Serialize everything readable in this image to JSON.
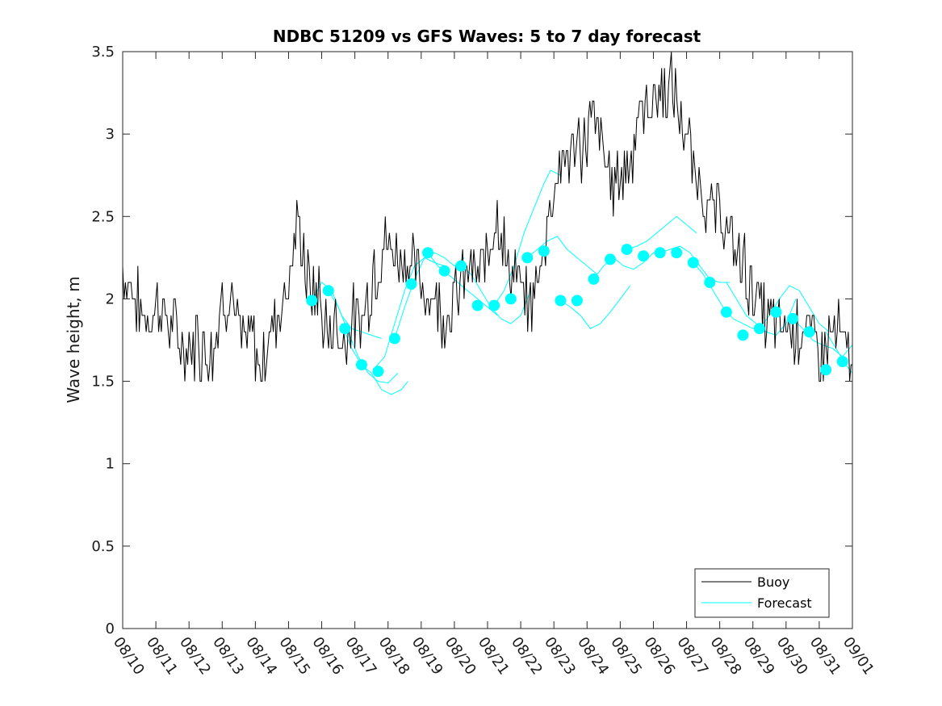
{
  "chart_data": {
    "type": "line",
    "title": "NDBC 51209 vs GFS Waves: 5 to 7 day forecast",
    "xlabel": "",
    "ylabel": "Wave height, m",
    "ylim": [
      0,
      3.5
    ],
    "yticks": [
      0,
      0.5,
      1,
      1.5,
      2,
      2.5,
      3,
      3.5
    ],
    "ytick_labels": [
      "0",
      "0.5",
      "1",
      "1.5",
      "2",
      "2.5",
      "3",
      "3.5"
    ],
    "xlim_days": [
      0,
      22
    ],
    "xtick_labels": [
      "08/10",
      "08/11",
      "08/12",
      "08/13",
      "08/14",
      "08/15",
      "08/16",
      "08/17",
      "08/18",
      "08/19",
      "08/20",
      "08/21",
      "08/22",
      "08/23",
      "08/24",
      "08/25",
      "08/26",
      "08/27",
      "08/28",
      "08/29",
      "08/30",
      "08/31",
      "09/01"
    ],
    "grid": false,
    "legend": {
      "position": "bottom-right",
      "entries": [
        "Buoy",
        "Forecast"
      ]
    },
    "colors": {
      "buoy": "#000000",
      "forecast": "#00ffff",
      "axis": "#262626"
    },
    "series": [
      {
        "name": "Buoy",
        "x_units": "days since 08/10 00:00",
        "x": [
          0,
          0.5,
          0.8,
          1,
          1.3,
          1.6,
          1.9,
          2.2,
          2.5,
          2.8,
          3,
          3.3,
          3.6,
          3.9,
          4.1,
          4.3,
          4.6,
          4.8,
          5,
          5.3,
          5.5,
          5.7,
          5.9,
          6.1,
          6.4,
          6.6,
          6.9,
          7.1,
          7.3,
          7.6,
          7.9,
          8.2,
          8.5,
          8.8,
          9,
          9.2,
          9.5,
          9.7,
          10,
          10.2,
          10.5,
          10.7,
          11,
          11.3,
          11.6,
          11.9,
          12.2,
          12.5,
          12.8,
          13,
          13.3,
          13.6,
          13.9,
          14.2,
          14.5,
          14.7,
          15,
          15.3,
          15.6,
          15.9,
          16.2,
          16.5,
          16.8,
          17,
          17.2,
          17.4,
          17.6,
          17.8,
          18,
          18.3,
          18.6,
          18.9,
          19.2,
          19.5,
          19.8,
          20,
          20.2,
          20.5,
          20.8,
          21.1,
          21.4,
          21.7,
          22
        ],
        "y": [
          2.2,
          1.95,
          1.85,
          2.0,
          1.9,
          1.8,
          1.7,
          1.75,
          1.7,
          1.75,
          2.0,
          2.0,
          1.7,
          1.8,
          1.55,
          1.7,
          1.9,
          2.0,
          2.1,
          2.5,
          2.2,
          2.0,
          2.05,
          1.8,
          1.85,
          1.75,
          1.9,
          1.8,
          1.95,
          2.2,
          2.3,
          2.3,
          2.25,
          2.2,
          2.1,
          2.05,
          2.0,
          1.9,
          2.0,
          2.1,
          2.2,
          2.1,
          2.3,
          2.55,
          2.2,
          2.1,
          1.95,
          2.1,
          2.45,
          2.7,
          2.85,
          2.9,
          2.95,
          3.1,
          2.9,
          2.7,
          2.75,
          2.9,
          3.1,
          3.2,
          3.25,
          3.3,
          3.1,
          2.95,
          2.8,
          2.7,
          2.6,
          2.5,
          2.55,
          2.35,
          2.25,
          2.1,
          1.95,
          1.85,
          1.8,
          1.85,
          1.8,
          1.85,
          1.75,
          1.7,
          1.8,
          1.75,
          1.6
        ]
      },
      {
        "name": "Forecast",
        "points_x": [
          5.7,
          6.2,
          6.7,
          7.2,
          7.7,
          8.2,
          8.7,
          9.2,
          9.7,
          10.2,
          10.7,
          11.2,
          11.7,
          12.2,
          12.7,
          13.2,
          13.7,
          14.2,
          14.7,
          15.2,
          15.7,
          16.2,
          16.7,
          17.2,
          17.7,
          18.2,
          18.7,
          19.2,
          19.7,
          20.2,
          20.7,
          21.2,
          21.7
        ],
        "points_y": [
          1.99,
          2.05,
          1.82,
          1.6,
          1.56,
          1.76,
          2.09,
          2.28,
          2.17,
          2.2,
          1.96,
          1.96,
          2.0,
          2.25,
          2.29,
          1.99,
          1.99,
          2.12,
          2.24,
          2.3,
          2.26,
          2.28,
          2.28,
          2.22,
          2.1,
          1.92,
          1.78,
          1.82,
          1.92,
          1.88,
          1.8,
          1.57,
          1.62
        ],
        "traces": [
          {
            "x": [
              5.7,
              6.0,
              6.3,
              6.6,
              6.9,
              7.2,
              7.5,
              7.8
            ],
            "y": [
              1.99,
              2.1,
              2.05,
              1.9,
              1.82,
              1.8,
              1.78,
              1.76
            ]
          },
          {
            "x": [
              6.2,
              6.5,
              6.8,
              7.1,
              7.4,
              7.7,
              8.0,
              8.3
            ],
            "y": [
              2.05,
              1.95,
              1.8,
              1.65,
              1.55,
              1.5,
              1.49,
              1.55
            ]
          },
          {
            "x": [
              6.6,
              6.9,
              7.2,
              7.5,
              7.8,
              8.1,
              8.4,
              8.6
            ],
            "y": [
              1.85,
              1.7,
              1.6,
              1.55,
              1.45,
              1.42,
              1.45,
              1.5
            ]
          },
          {
            "x": [
              7.6,
              7.9,
              8.2,
              8.5,
              8.8,
              9.1,
              9.4,
              9.7
            ],
            "y": [
              1.58,
              1.65,
              1.85,
              2.05,
              2.2,
              2.25,
              2.22,
              2.2
            ]
          },
          {
            "x": [
              8.2,
              8.5,
              8.8,
              9.1,
              9.4,
              9.7,
              10.0,
              10.3
            ],
            "y": [
              1.76,
              1.95,
              2.12,
              2.25,
              2.28,
              2.25,
              2.2,
              2.25
            ]
          },
          {
            "x": [
              9.2,
              9.5,
              9.8,
              10.1,
              10.4,
              10.7,
              11.0,
              11.3
            ],
            "y": [
              2.28,
              2.2,
              2.15,
              2.1,
              2.05,
              2.0,
              1.95,
              1.9
            ]
          },
          {
            "x": [
              10.2,
              10.5,
              10.8,
              11.1,
              11.4,
              11.7,
              12.0,
              12.3
            ],
            "y": [
              2.2,
              2.15,
              2.05,
              1.95,
              1.88,
              1.85,
              1.9,
              2.05
            ]
          },
          {
            "x": [
              11.2,
              11.5,
              11.8,
              12.1,
              12.4,
              12.7,
              12.9,
              13.2
            ],
            "y": [
              1.96,
              2.05,
              2.2,
              2.4,
              2.55,
              2.7,
              2.78,
              2.75
            ]
          },
          {
            "x": [
              12.2,
              12.5,
              12.8,
              13.1,
              13.4,
              13.7,
              14.0,
              14.3
            ],
            "y": [
              2.25,
              2.3,
              2.35,
              2.38,
              2.3,
              2.25,
              2.2,
              2.15
            ]
          },
          {
            "x": [
              13.2,
              13.5,
              13.8,
              14.1,
              14.4,
              14.7,
              15.0,
              15.3
            ],
            "y": [
              1.99,
              1.95,
              1.9,
              1.82,
              1.85,
              1.92,
              2.0,
              2.08
            ]
          },
          {
            "x": [
              14.2,
              14.5,
              14.8,
              15.1,
              15.4,
              15.7,
              16.0,
              16.3
            ],
            "y": [
              2.12,
              2.2,
              2.25,
              2.2,
              2.18,
              2.22,
              2.28,
              2.3
            ]
          },
          {
            "x": [
              15.2,
              15.5,
              15.8,
              16.1,
              16.4,
              16.7,
              17.0,
              17.3
            ],
            "y": [
              2.3,
              2.32,
              2.35,
              2.4,
              2.45,
              2.5,
              2.45,
              2.4
            ]
          },
          {
            "x": [
              16.2,
              16.5,
              16.8,
              17.1,
              17.4,
              17.7,
              18.0,
              18.3
            ],
            "y": [
              2.28,
              2.3,
              2.32,
              2.28,
              2.2,
              2.12,
              2.1,
              2.1
            ]
          },
          {
            "x": [
              17.2,
              17.5,
              17.8,
              18.1,
              18.4,
              18.7,
              19.0,
              19.3
            ],
            "y": [
              2.22,
              2.15,
              2.05,
              1.95,
              1.88,
              1.85,
              1.82,
              1.85
            ]
          },
          {
            "x": [
              18.2,
              18.5,
              18.8,
              19.1,
              19.4,
              19.7,
              20.0,
              20.3
            ],
            "y": [
              2.1,
              2.0,
              1.9,
              1.85,
              1.8,
              1.78,
              1.85,
              2.0
            ]
          },
          {
            "x": [
              19.2,
              19.5,
              19.8,
              20.1,
              20.4,
              20.7,
              21.0,
              21.3
            ],
            "y": [
              1.82,
              1.9,
              2.0,
              2.08,
              2.05,
              1.95,
              1.85,
              1.8
            ]
          },
          {
            "x": [
              20.2,
              20.5,
              20.8,
              21.1,
              21.4,
              21.7,
              22.0
            ],
            "y": [
              1.88,
              1.82,
              1.75,
              1.72,
              1.7,
              1.65,
              1.72
            ]
          },
          {
            "x": [
              21.2,
              21.5,
              21.8,
              22.0
            ],
            "y": [
              1.8,
              1.7,
              1.6,
              1.55
            ]
          }
        ]
      }
    ]
  }
}
